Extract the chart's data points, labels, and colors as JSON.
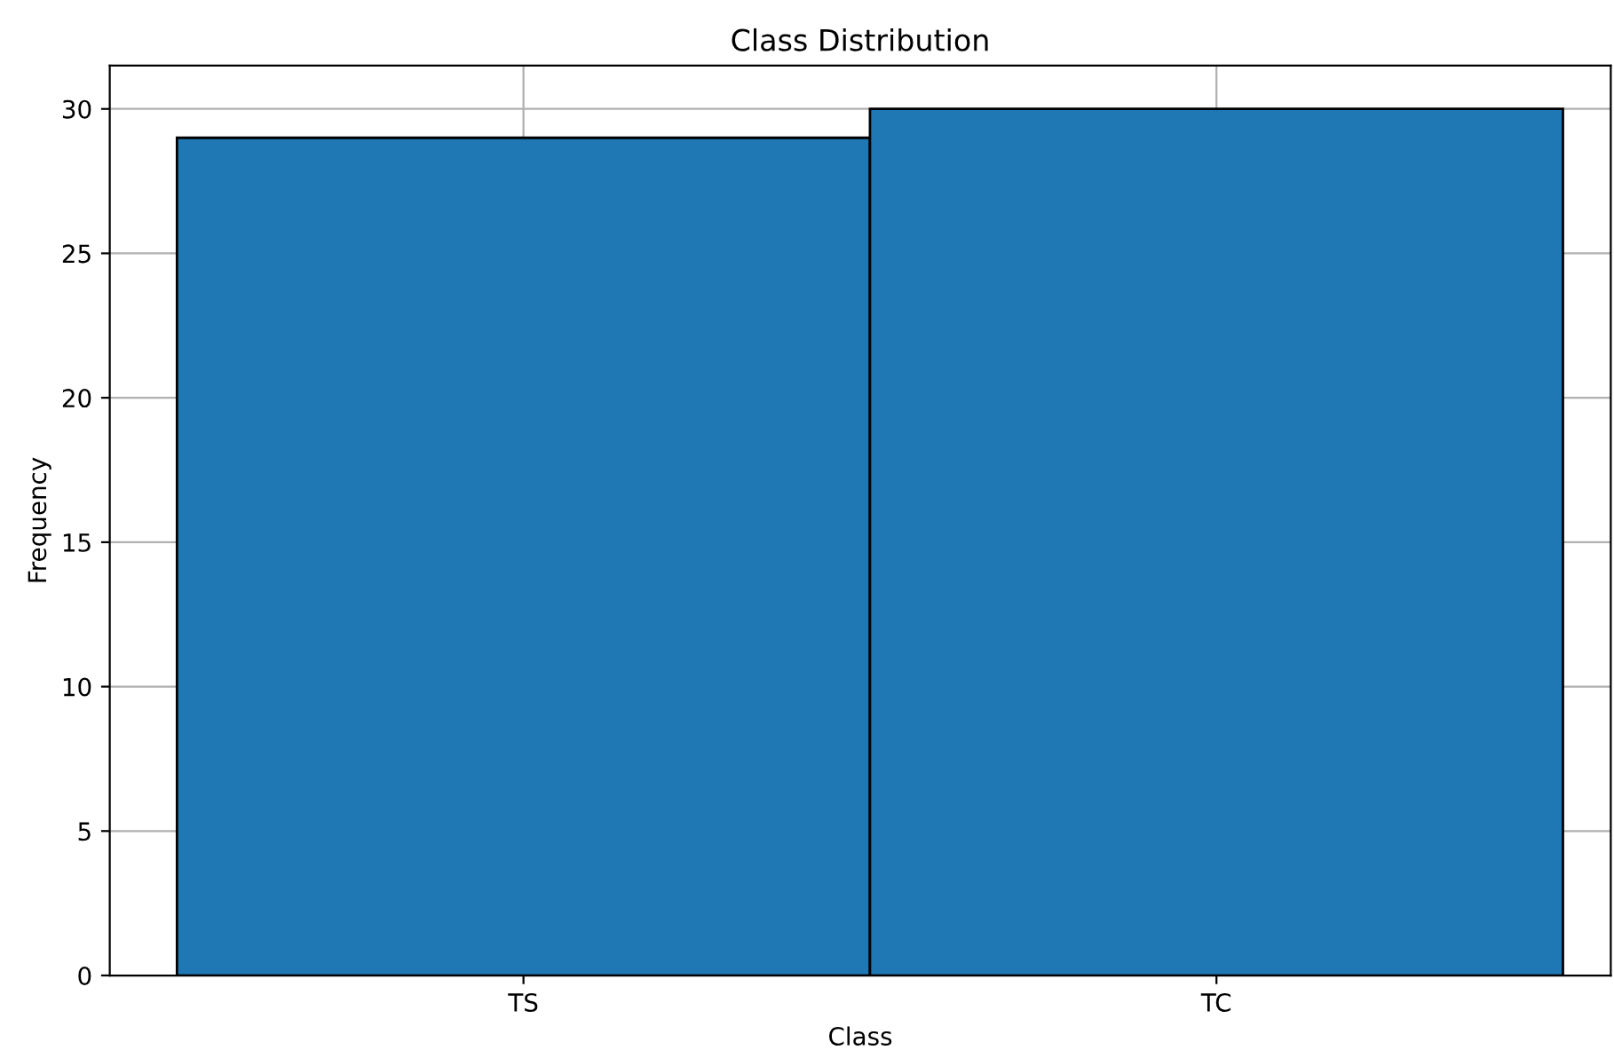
{
  "chart_data": {
    "type": "bar",
    "title": "Class Distribution",
    "xlabel": "Class",
    "ylabel": "Frequency",
    "categories": [
      "TS",
      "TC"
    ],
    "values": [
      29,
      30
    ],
    "color": "#1f77b4",
    "ylim": [
      0,
      31.5
    ],
    "yticks": [
      0,
      5,
      10,
      15,
      20,
      25,
      30
    ],
    "grid": true
  }
}
